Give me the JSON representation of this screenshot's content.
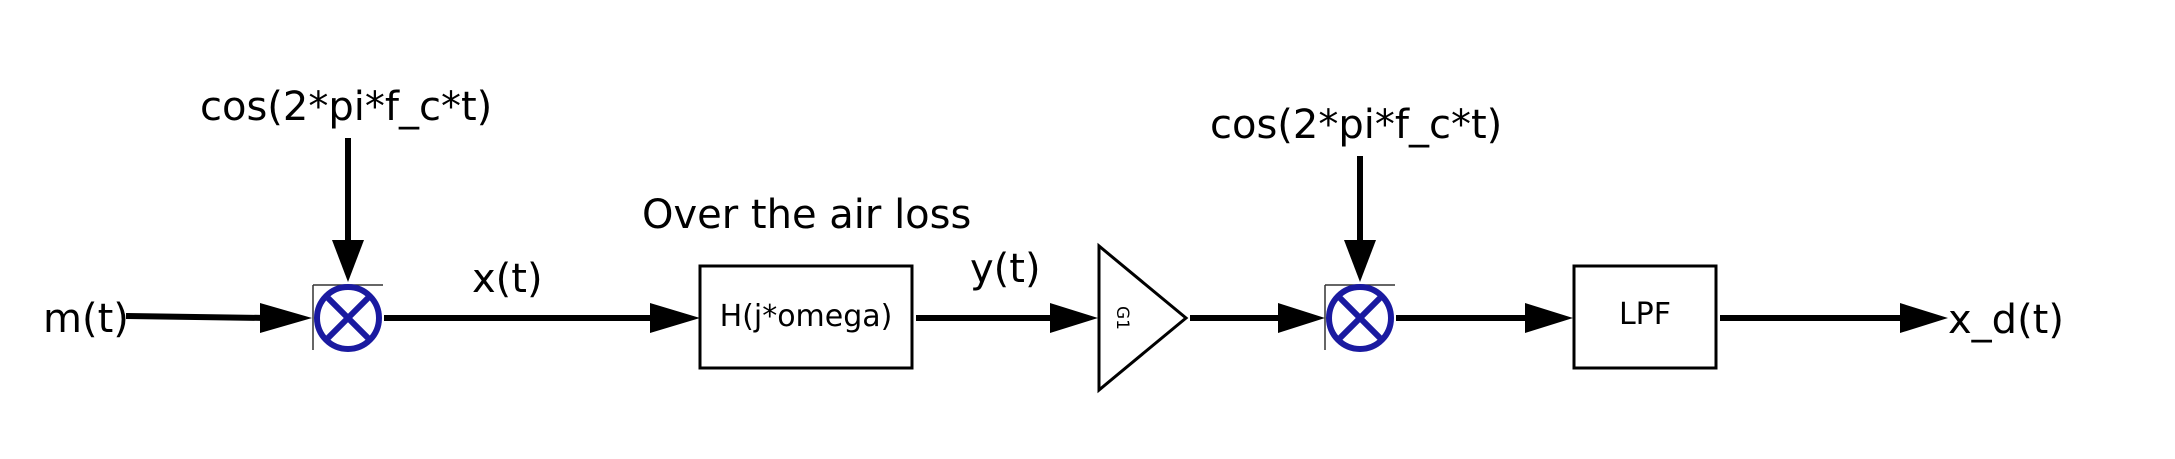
{
  "diagram": {
    "labels": {
      "input": "m(t)",
      "carrier_tx": "cos(2*pi*f_c*t)",
      "modulated": "x(t)",
      "channel_note": "Over the air loss",
      "channel_block": "H(j*omega)",
      "received": "y(t)",
      "amplifier": "G1",
      "carrier_rx": "cos(2*pi*f_c*t)",
      "filter_block": "LPF",
      "output": "x_d(t)"
    },
    "colors": {
      "line": "#000000",
      "multiplier_ring": "#1a1aa0",
      "background": "#ffffff"
    },
    "icons": {
      "mixer": "circle-cross-icon",
      "amplifier": "triangle-icon"
    }
  }
}
